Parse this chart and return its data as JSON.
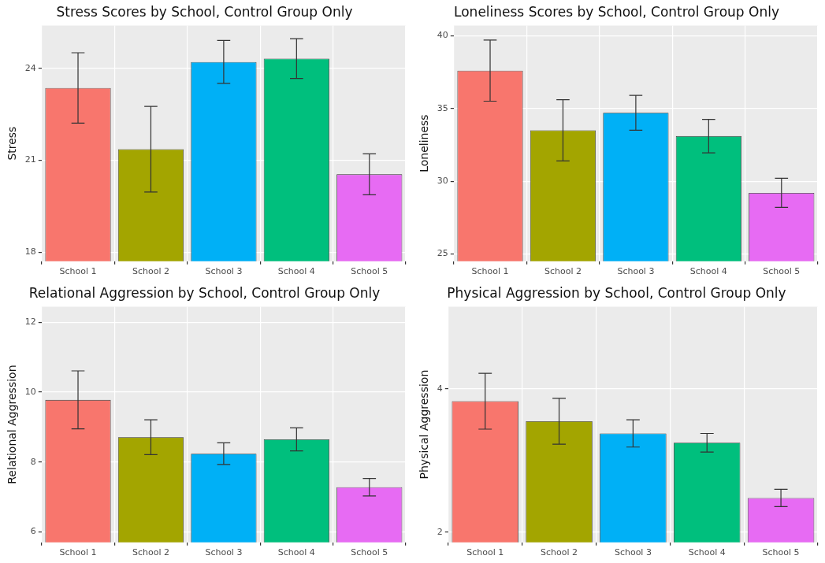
{
  "chart_data": [
    {
      "type": "bar",
      "title": "Stress Scores by School, Control Group Only",
      "ylabel": "Stress",
      "categories": [
        "School 1",
        "School 2",
        "School 3",
        "School 4",
        "School 5"
      ],
      "values": [
        23.36,
        21.36,
        24.21,
        24.32,
        20.54
      ],
      "errors": [
        1.15,
        1.4,
        0.7,
        0.65,
        0.67
      ],
      "colors": [
        "#f8766d",
        "#a3a500",
        "#00b0f6",
        "#00bf7d",
        "#e76bf3"
      ],
      "ylim": [
        17.7,
        25.4
      ],
      "yticks": [
        18,
        21,
        24
      ],
      "grid": true,
      "legend": false
    },
    {
      "type": "bar",
      "title": "Loneliness Scores by School, Control Group Only",
      "ylabel": "Loneliness",
      "categories": [
        "School 1",
        "School 2",
        "School 3",
        "School 4",
        "School 5"
      ],
      "values": [
        37.6,
        33.5,
        34.7,
        33.1,
        29.2
      ],
      "errors": [
        2.1,
        2.1,
        1.2,
        1.15,
        1.0
      ],
      "colors": [
        "#f8766d",
        "#a3a500",
        "#00b0f6",
        "#00bf7d",
        "#e76bf3"
      ],
      "ylim": [
        24.5,
        40.7
      ],
      "yticks": [
        25,
        30,
        35,
        40
      ],
      "grid": true,
      "legend": false
    },
    {
      "type": "bar",
      "title": "Relational Aggression by School, Control Group Only",
      "ylabel": "Relational Aggression",
      "categories": [
        "School 1",
        "School 2",
        "School 3",
        "School 4",
        "School 5"
      ],
      "values": [
        9.78,
        8.71,
        8.24,
        8.65,
        7.28
      ],
      "errors": [
        0.83,
        0.5,
        0.31,
        0.33,
        0.25
      ],
      "colors": [
        "#f8766d",
        "#a3a500",
        "#00b0f6",
        "#00bf7d",
        "#e76bf3"
      ],
      "ylim": [
        5.7,
        12.45
      ],
      "yticks": [
        6,
        8,
        10,
        12
      ],
      "grid": true,
      "legend": false
    },
    {
      "type": "bar",
      "title": "Physical Aggression by School, Control Group Only",
      "ylabel": "Physical Aggression",
      "categories": [
        "School 1",
        "School 2",
        "School 3",
        "School 4",
        "School 5"
      ],
      "values": [
        3.83,
        3.55,
        3.38,
        3.25,
        2.48
      ],
      "errors": [
        0.39,
        0.32,
        0.19,
        0.13,
        0.12
      ],
      "colors": [
        "#f8766d",
        "#a3a500",
        "#00b0f6",
        "#00bf7d",
        "#e76bf3"
      ],
      "ylim": [
        1.86,
        5.15
      ],
      "yticks": [
        2,
        4
      ],
      "grid": true,
      "legend": false
    }
  ]
}
